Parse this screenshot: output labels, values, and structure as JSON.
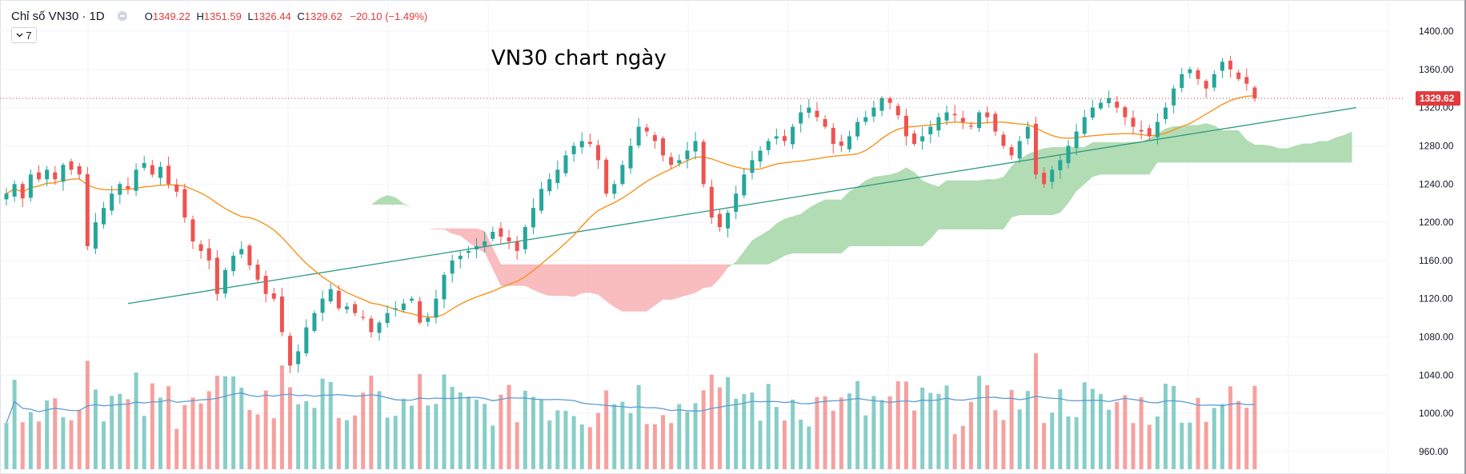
{
  "header": {
    "symbol_title": "Chỉ số VN30 · 1D",
    "ohlc": {
      "o_label": "O",
      "o_value": "1349.22",
      "h_label": "H",
      "h_value": "1351.59",
      "l_label": "L",
      "l_value": "1326.44",
      "c_label": "C",
      "c_value": "1329.62",
      "change": "−20.10 (−1.49%)"
    },
    "indicator_count": "7",
    "chevron_icon": "chevron-down-icon"
  },
  "annotation_text": "VN30 chart ngày",
  "last_price_label": "1329.62",
  "colors": {
    "up": "#26a69a",
    "down": "#ef5350",
    "cloud_bull": "#a5d6a7",
    "cloud_bear": "#f8b0b4",
    "ma_line": "#f7931a",
    "volume_ma": "#5b9bd5",
    "trendline": "#2b9a7f",
    "price_line": "#e03a3e"
  },
  "chart_data": {
    "type": "candlestick",
    "timeframe": "1D",
    "y_axis": {
      "ticks": [
        "1400.00",
        "1360.00",
        "1320.00",
        "1280.00",
        "1240.00",
        "1200.00",
        "1160.00",
        "1120.00",
        "1080.00",
        "1040.00",
        "1000.00",
        "960.00"
      ],
      "range": [
        950,
        1410
      ]
    },
    "price_path": [
      1230,
      1240,
      1225,
      1250,
      1245,
      1255,
      1245,
      1260,
      1255,
      1250,
      1175,
      1200,
      1215,
      1230,
      1240,
      1235,
      1255,
      1262,
      1250,
      1258,
      1240,
      1232,
      1205,
      1180,
      1170,
      1160,
      1125,
      1150,
      1165,
      1172,
      1155,
      1140,
      1125,
      1120,
      1085,
      1050,
      1065,
      1090,
      1105,
      1120,
      1130,
      1110,
      1112,
      1105,
      1100,
      1085,
      1095,
      1105,
      1110,
      1115,
      1120,
      1095,
      1100,
      1120,
      1145,
      1160,
      1165,
      1170,
      1175,
      1180,
      1190,
      1185,
      1180,
      1170,
      1195,
      1215,
      1235,
      1245,
      1255,
      1270,
      1280,
      1285,
      1282,
      1265,
      1230,
      1240,
      1260,
      1280,
      1300,
      1295,
      1285,
      1270,
      1260,
      1265,
      1275,
      1285,
      1240,
      1205,
      1195,
      1210,
      1230,
      1250,
      1265,
      1275,
      1285,
      1290,
      1285,
      1300,
      1315,
      1320,
      1310,
      1300,
      1282,
      1280,
      1290,
      1305,
      1310,
      1320,
      1330,
      1325,
      1312,
      1290,
      1282,
      1290,
      1300,
      1310,
      1315,
      1312,
      1305,
      1300,
      1315,
      1310,
      1295,
      1280,
      1270,
      1285,
      1300,
      1250,
      1240,
      1255,
      1265,
      1280,
      1295,
      1310,
      1320,
      1325,
      1330,
      1320,
      1310,
      1300,
      1295,
      1290,
      1305,
      1320,
      1340,
      1355,
      1360,
      1350,
      1340,
      1355,
      1368,
      1360,
      1350,
      1345,
      1329.62
    ],
    "ma_line": {
      "period": 20,
      "color": "#f7931a"
    },
    "ichimoku_cloud": true,
    "volume": {
      "ma_line": true
    },
    "trendline": {
      "from": [
        15,
        1115
      ],
      "to": [
        165,
        1320
      ]
    },
    "last_close": 1329.62,
    "grid": true,
    "legend": "top-left"
  }
}
